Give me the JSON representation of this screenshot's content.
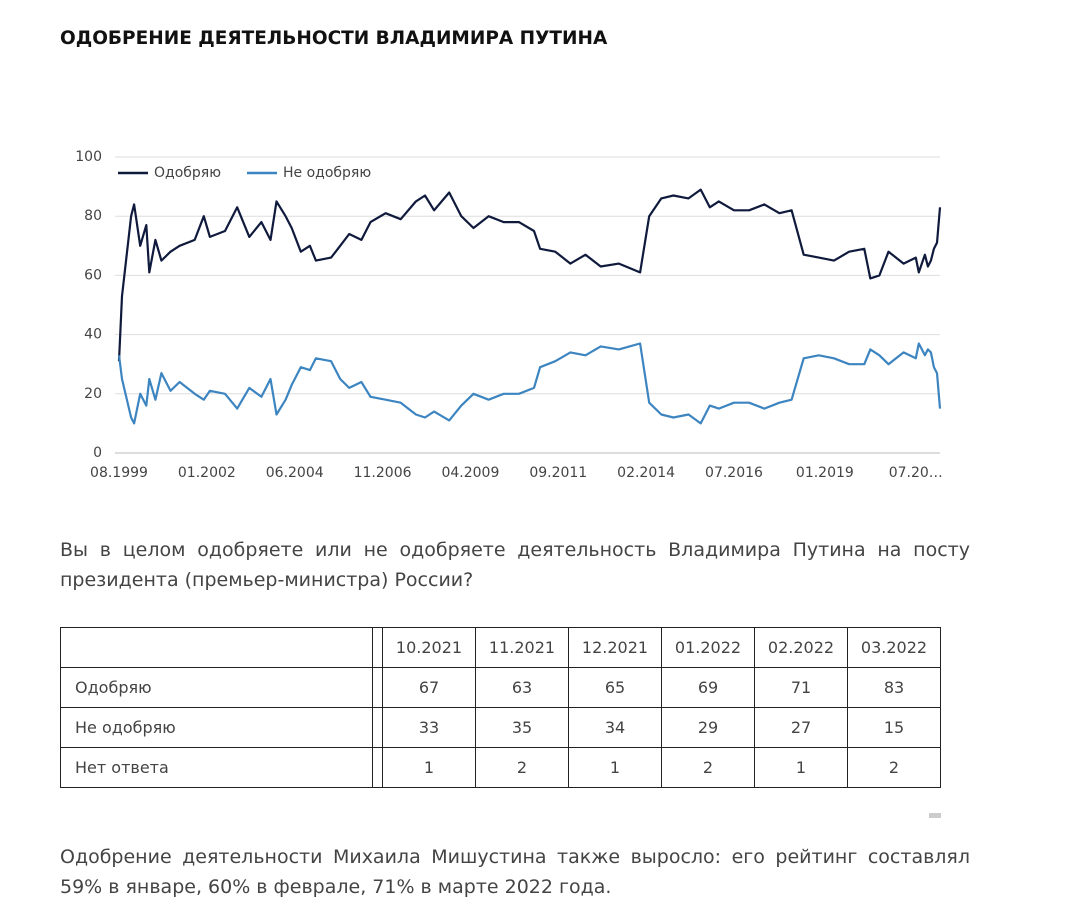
{
  "title": "ОДОБРЕНИЕ ДЕЯТЕЛЬНОСТИ ВЛАДИМИРА ПУТИНА",
  "chart_data": {
    "type": "line",
    "x": [
      "08.1999",
      "09.1999",
      "12.1999",
      "01.2000",
      "03.2000",
      "05.2000",
      "06.2000",
      "08.2000",
      "10.2000",
      "01.2001",
      "04.2001",
      "09.2001",
      "12.2001",
      "02.2002",
      "07.2002",
      "11.2002",
      "03.2003",
      "07.2003",
      "10.2003",
      "12.2003",
      "03.2004",
      "05.2004",
      "08.2004",
      "11.2004",
      "01.2005",
      "06.2005",
      "09.2005",
      "12.2005",
      "04.2006",
      "07.2006",
      "12.2006",
      "05.2007",
      "10.2007",
      "01.2008",
      "04.2008",
      "09.2008",
      "01.2009",
      "05.2009",
      "10.2009",
      "03.2010",
      "08.2010",
      "01.2011",
      "03.2011",
      "08.2011",
      "01.2012",
      "06.2012",
      "11.2012",
      "05.2013",
      "12.2013",
      "03.2014",
      "07.2014",
      "11.2014",
      "04.2015",
      "08.2015",
      "11.2015",
      "02.2016",
      "07.2016",
      "12.2016",
      "05.2017",
      "10.2017",
      "02.2018",
      "06.2018",
      "11.2018",
      "04.2019",
      "09.2019",
      "02.2020",
      "04.2020",
      "07.2020",
      "10.2020",
      "03.2021",
      "07.2021",
      "08.2021",
      "10.2021",
      "11.2021",
      "12.2021",
      "01.2022",
      "02.2022",
      "03.2022"
    ],
    "series": [
      {
        "name": "Одобряю",
        "color": "#0f1a3c",
        "values": [
          31,
          53,
          80,
          84,
          70,
          77,
          61,
          72,
          65,
          68,
          70,
          72,
          80,
          73,
          75,
          83,
          73,
          78,
          72,
          85,
          80,
          76,
          68,
          70,
          65,
          66,
          70,
          74,
          72,
          78,
          81,
          79,
          85,
          87,
          82,
          88,
          80,
          76,
          80,
          78,
          78,
          75,
          69,
          68,
          64,
          67,
          63,
          64,
          61,
          80,
          86,
          87,
          86,
          89,
          83,
          85,
          82,
          82,
          84,
          81,
          82,
          67,
          66,
          65,
          68,
          69,
          59,
          60,
          68,
          64,
          66,
          61,
          67,
          63,
          65,
          69,
          71,
          83
        ]
      },
      {
        "name": "Не одобряю",
        "color": "#3d85c0",
        "values": [
          33,
          25,
          12,
          10,
          20,
          16,
          25,
          18,
          27,
          21,
          24,
          20,
          18,
          21,
          20,
          15,
          22,
          19,
          25,
          13,
          18,
          23,
          29,
          28,
          32,
          31,
          25,
          22,
          24,
          19,
          18,
          17,
          13,
          12,
          14,
          11,
          16,
          20,
          18,
          20,
          20,
          22,
          29,
          31,
          34,
          33,
          36,
          35,
          37,
          17,
          13,
          12,
          13,
          10,
          16,
          15,
          17,
          17,
          15,
          17,
          18,
          32,
          33,
          32,
          30,
          30,
          35,
          33,
          30,
          34,
          32,
          37,
          33,
          35,
          34,
          29,
          27,
          15
        ]
      }
    ],
    "xlim": [
      "08.1999",
      "03.2022"
    ],
    "xticks": [
      "08.1999",
      "01.2002",
      "06.2004",
      "11.2006",
      "04.2009",
      "09.2011",
      "02.2014",
      "07.2016",
      "01.2019",
      {
        "value": "07.2021",
        "label": "07.20…"
      }
    ],
    "ylim": [
      0,
      100
    ],
    "yticks": [
      0,
      20,
      40,
      60,
      80,
      100
    ],
    "grid": true,
    "legend": "top-left"
  },
  "question": "Вы в целом одобряете или не одобряете деятельность Владимира Путина на посту президента (премьер-министра) России?",
  "table": {
    "columns": [
      "10.2021",
      "11.2021",
      "12.2021",
      "01.2022",
      "02.2022",
      "03.2022"
    ],
    "rows": [
      [
        "Одобряю",
        "67",
        "63",
        "65",
        "69",
        "71",
        "83"
      ],
      [
        "Не одобряю",
        "33",
        "35",
        "34",
        "29",
        "27",
        "15"
      ],
      [
        "Нет ответа",
        "1",
        "2",
        "1",
        "2",
        "1",
        "2"
      ]
    ]
  },
  "footer": "Одобрение деятельности Михаила Мишустина также выросло: его рейтинг составлял 59% в январе, 60% в феврале, 71% в марте 2022 года."
}
